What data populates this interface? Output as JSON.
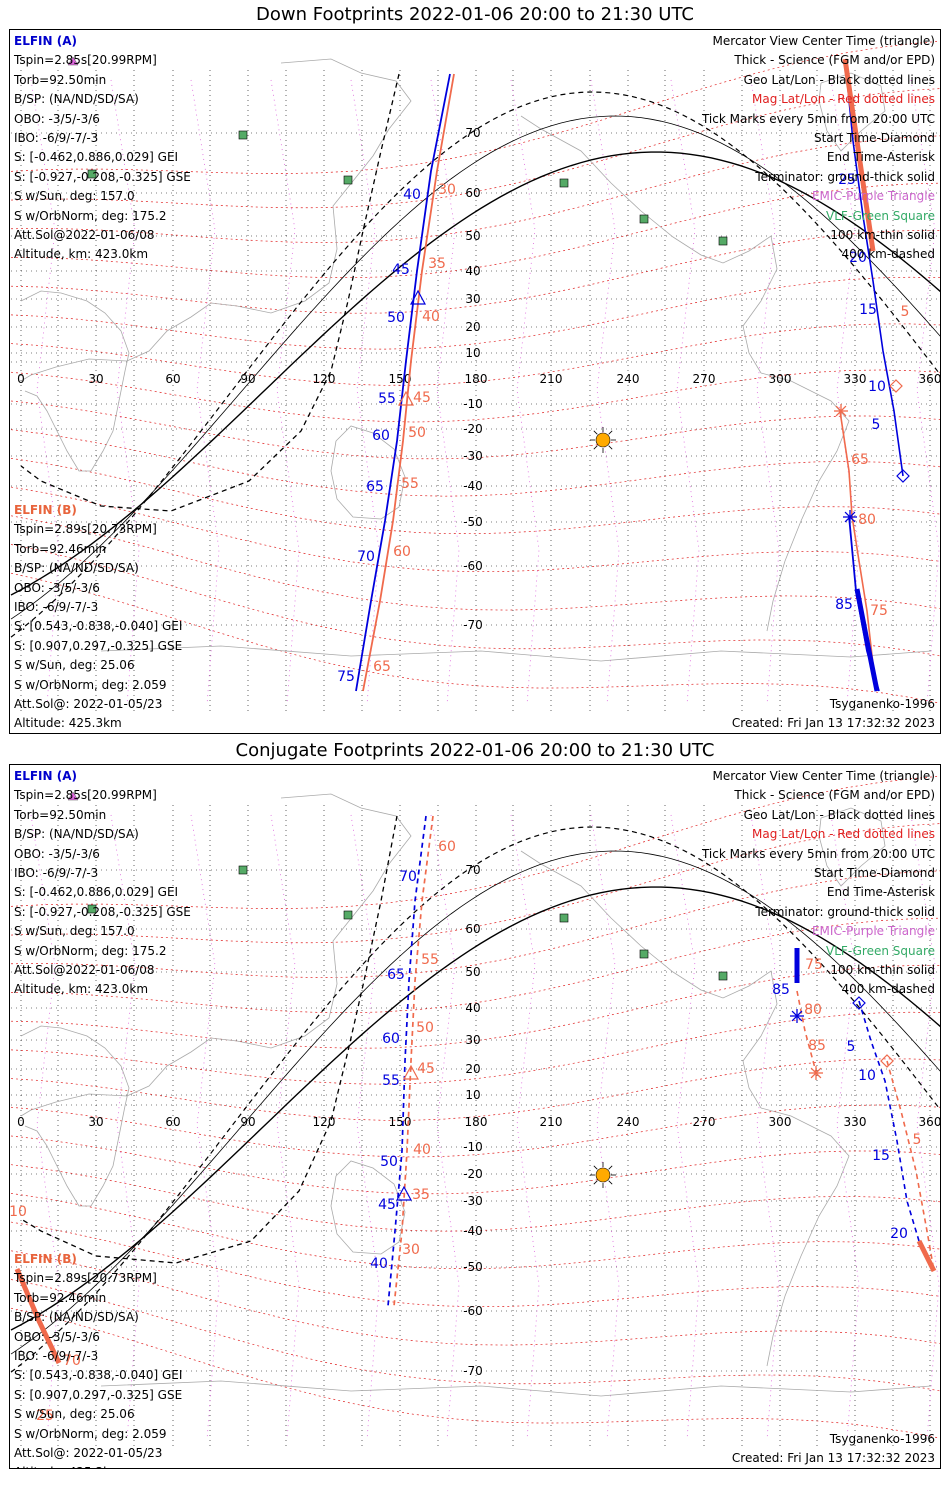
{
  "colors": {
    "elfin_a": "#0000dd",
    "elfin_b": "#f06a4c",
    "geo_grid": "#000000",
    "mag_grid": "#e02020",
    "coast": "#aaaaaa",
    "orbit_ticks": "#dd66dd",
    "vlf": "#55aa66",
    "sun": "#ffaa00"
  },
  "elfin_a": {
    "name": "ELFIN (A)",
    "lines": [
      "Tspin=2.85s[20.99RPM]",
      "Torb=92.50min",
      "B/SP: (NA/ND/SD/SA)",
      "OBO: -3/5/-3/6",
      "IBO: -6/9/-7/-3",
      "S: [-0.462,0.886,0.029] GEI",
      "S: [-0.927,-0.208,-0.325] GSE",
      "S w/Sun, deg: 157.0",
      "S w/OrbNorm, deg: 175.2",
      "Att.Sol@2022-01-06/08",
      "Altitude, km: 423.0km"
    ]
  },
  "elfin_b": {
    "name": "ELFIN (B)",
    "lines": [
      "Tspin=2.89s[20.73RPM]",
      "Torb=92.46min",
      "B/SP: (NA/ND/SD/SA)",
      "OBO: -3/5/-3/6",
      "IBO: -6/9/-7/-3",
      "S: [0.543,-0.838,-0.040] GEI",
      "S: [0.907,0.297,-0.325] GSE",
      "S w/Sun, deg: 25.06",
      "S w/OrbNorm, deg: 2.059",
      "Att.Sol@: 2022-01-05/23",
      "Altitude: 425.3km"
    ]
  },
  "legend": {
    "items": [
      "Mercator View Center Time (triangle)",
      "Thick - Science (FGM and/or EPD)",
      "Geo Lat/Lon - Black dotted lines",
      "Mag Lat/Lon - Red dotted lines",
      "Tick Marks every 5min from 20:00 UTC",
      "Start Time-Diamond",
      "End Time-Asterisk",
      "Terminator: ground-thick solid",
      "EMIC-Purple Triangle",
      "VLF-Green Square",
      "100 km-thin solid",
      "400 km-dashed"
    ]
  },
  "footer": {
    "model": "Tsyganenko-1996",
    "created": "Created: Fri Jan 13 17:32:32 2023"
  },
  "axes": {
    "lon_ticks": [
      "0",
      "30",
      "60",
      "90",
      "120",
      "150",
      "180",
      "210",
      "240",
      "270",
      "300",
      "330",
      "360"
    ],
    "lat_ticks": [
      "70",
      "60",
      "50",
      "40",
      "30",
      "20",
      "10",
      "-10",
      "-20",
      "-30",
      "-40",
      "-50",
      "-60",
      "-70"
    ]
  },
  "panels": [
    {
      "title": "Down Footprints 2022-01-06 20:00 to 21:30 UTC",
      "a_track1": {
        "labels": [
          {
            "text": "40",
            "x": 411,
            "y": 193
          },
          {
            "text": "45",
            "x": 400,
            "y": 268
          },
          {
            "text": "50",
            "x": 395,
            "y": 316
          },
          {
            "text": "55",
            "x": 386,
            "y": 397
          },
          {
            "text": "60",
            "x": 380,
            "y": 434
          },
          {
            "text": "65",
            "x": 374,
            "y": 485
          },
          {
            "text": "70",
            "x": 365,
            "y": 555
          },
          {
            "text": "75",
            "x": 345,
            "y": 675
          }
        ]
      },
      "b_track1": {
        "labels": [
          {
            "text": "30",
            "x": 446,
            "y": 188
          },
          {
            "text": "35",
            "x": 436,
            "y": 262
          },
          {
            "text": "40",
            "x": 430,
            "y": 315
          },
          {
            "text": "45",
            "x": 421,
            "y": 396
          },
          {
            "text": "50",
            "x": 416,
            "y": 431
          },
          {
            "text": "55",
            "x": 409,
            "y": 482
          },
          {
            "text": "60",
            "x": 401,
            "y": 550
          },
          {
            "text": "65",
            "x": 381,
            "y": 665
          }
        ]
      },
      "a_track2": {
        "labels": [
          {
            "text": "25",
            "x": 846,
            "y": 178
          },
          {
            "text": "20",
            "x": 857,
            "y": 256
          },
          {
            "text": "15",
            "x": 867,
            "y": 308
          },
          {
            "text": "10",
            "x": 876,
            "y": 385
          },
          {
            "text": "5",
            "x": 875,
            "y": 423
          },
          {
            "text": "85",
            "x": 843,
            "y": 603
          }
        ]
      },
      "b_track2": {
        "labels": [
          {
            "text": "5",
            "x": 904,
            "y": 310
          },
          {
            "text": "65",
            "x": 859,
            "y": 458
          },
          {
            "text": "80",
            "x": 866,
            "y": 518
          },
          {
            "text": "75",
            "x": 878,
            "y": 609
          }
        ]
      }
    },
    {
      "title": "Conjugate Footprints 2022-01-06 20:00 to 21:30 UTC",
      "a_track1": {
        "labels": [
          {
            "text": "70",
            "x": 407,
            "y": 875
          },
          {
            "text": "65",
            "x": 395,
            "y": 973
          },
          {
            "text": "60",
            "x": 390,
            "y": 1037
          },
          {
            "text": "55",
            "x": 390,
            "y": 1079
          },
          {
            "text": "50",
            "x": 388,
            "y": 1160
          },
          {
            "text": "45",
            "x": 386,
            "y": 1203
          },
          {
            "text": "40",
            "x": 378,
            "y": 1262
          }
        ]
      },
      "b_track1": {
        "labels": [
          {
            "text": "60",
            "x": 446,
            "y": 845
          },
          {
            "text": "55",
            "x": 429,
            "y": 958
          },
          {
            "text": "50",
            "x": 424,
            "y": 1026
          },
          {
            "text": "45",
            "x": 425,
            "y": 1067
          },
          {
            "text": "40",
            "x": 421,
            "y": 1148
          },
          {
            "text": "35",
            "x": 420,
            "y": 1193
          },
          {
            "text": "30",
            "x": 410,
            "y": 1248
          }
        ]
      },
      "a_track2": {
        "labels": [
          {
            "text": "85",
            "x": 780,
            "y": 988
          },
          {
            "text": "5",
            "x": 850,
            "y": 1045
          },
          {
            "text": "10",
            "x": 866,
            "y": 1074
          },
          {
            "text": "15",
            "x": 880,
            "y": 1154
          },
          {
            "text": "20",
            "x": 898,
            "y": 1232
          }
        ]
      },
      "b_track2": {
        "labels": [
          {
            "text": "75",
            "x": 813,
            "y": 963
          },
          {
            "text": "80",
            "x": 812,
            "y": 1008
          },
          {
            "text": "85",
            "x": 816,
            "y": 1044
          },
          {
            "text": "5",
            "x": 916,
            "y": 1138
          }
        ]
      },
      "b_track3": {
        "labels": [
          {
            "text": "10",
            "x": 17,
            "y": 1210
          },
          {
            "text": "70",
            "x": 71,
            "y": 1359
          },
          {
            "text": "25",
            "x": 44,
            "y": 1414
          }
        ]
      }
    }
  ]
}
